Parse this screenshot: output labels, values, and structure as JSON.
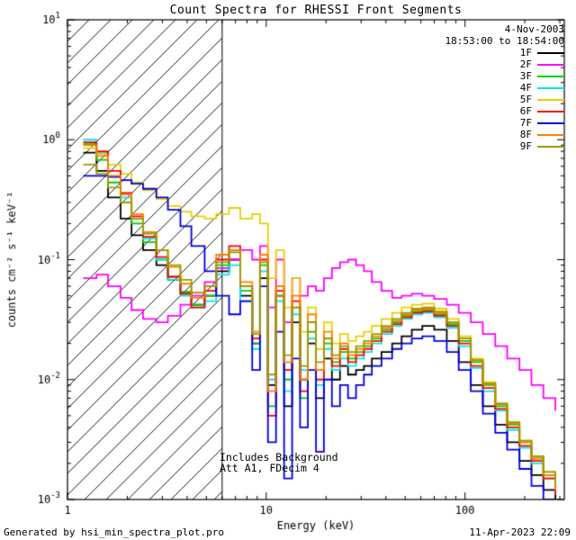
{
  "title": "Count Spectra for RHESSI Front Segments",
  "legend": {
    "date": "4-Nov-2003",
    "time_range": "18:53:00 to 18:54:00"
  },
  "annotations": {
    "line1": "Includes Background",
    "line2": "Att A1, FDecim 4"
  },
  "footer": {
    "left": "Generated by hsi_min_spectra_plot.pro",
    "right": "11-Apr-2023 22:09"
  },
  "chart_data": {
    "type": "line",
    "mode": "steps",
    "title": "Count Spectra for RHESSI Front Segments",
    "xlabel": "Energy (keV)",
    "ylabel": "counts cm⁻² s⁻¹ keV⁻¹",
    "xscale": "log",
    "yscale": "log",
    "xlim": [
      1,
      316
    ],
    "ylim": [
      0.001,
      10
    ],
    "x_ticks": [
      1,
      10,
      100
    ],
    "x_tick_labels": [
      "1",
      "10",
      "100"
    ],
    "y_tick_exponents": [
      1,
      0,
      -1,
      -2,
      -3
    ],
    "hatch_region_kev": [
      1,
      6.0
    ],
    "attenuator_line_kev": 6.0,
    "x": [
      1.2,
      1.4,
      1.6,
      1.85,
      2.1,
      2.4,
      2.8,
      3.2,
      3.7,
      4.2,
      4.9,
      5.6,
      6.5,
      7.4,
      8.5,
      9.3,
      10.2,
      11.2,
      12.3,
      13.5,
      14.8,
      16.2,
      17.8,
      19.5,
      21.4,
      23.5,
      25.8,
      28.3,
      31,
      34,
      38,
      43,
      48,
      54,
      61,
      70,
      81,
      93,
      107,
      123,
      142,
      163,
      188,
      216,
      248,
      285
    ],
    "series": [
      {
        "name": "1F",
        "color": "#000000",
        "values": [
          0.78,
          0.55,
          0.33,
          0.22,
          0.16,
          0.12,
          0.09,
          0.068,
          0.052,
          0.042,
          0.05,
          0.08,
          0.1,
          0.05,
          0.02,
          0.07,
          0.009,
          0.05,
          0.006,
          0.03,
          0.01,
          0.02,
          0.007,
          0.015,
          0.01,
          0.013,
          0.011,
          0.012,
          0.013,
          0.015,
          0.017,
          0.02,
          0.023,
          0.026,
          0.028,
          0.026,
          0.021,
          0.014,
          0.009,
          0.006,
          0.0042,
          0.003,
          0.0021,
          0.0016,
          0.0012,
          0.001
        ]
      },
      {
        "name": "2F",
        "color": "#ff00ff",
        "values": [
          0.07,
          0.075,
          0.06,
          0.048,
          0.038,
          0.032,
          0.03,
          0.034,
          0.042,
          0.05,
          0.065,
          0.085,
          0.1,
          0.12,
          0.1,
          0.13,
          0.04,
          0.1,
          0.03,
          0.07,
          0.05,
          0.06,
          0.055,
          0.07,
          0.085,
          0.095,
          0.1,
          0.09,
          0.08,
          0.065,
          0.055,
          0.048,
          0.05,
          0.052,
          0.05,
          0.047,
          0.042,
          0.036,
          0.03,
          0.024,
          0.019,
          0.015,
          0.012,
          0.009,
          0.007,
          0.0055
        ]
      },
      {
        "name": "3F",
        "color": "#00cc00",
        "values": [
          0.92,
          0.68,
          0.44,
          0.3,
          0.2,
          0.14,
          0.1,
          0.072,
          0.054,
          0.042,
          0.05,
          0.09,
          0.12,
          0.055,
          0.02,
          0.09,
          0.006,
          0.06,
          0.01,
          0.04,
          0.007,
          0.025,
          0.012,
          0.02,
          0.014,
          0.017,
          0.015,
          0.017,
          0.019,
          0.022,
          0.026,
          0.03,
          0.034,
          0.037,
          0.038,
          0.035,
          0.029,
          0.021,
          0.014,
          0.009,
          0.006,
          0.0042,
          0.003,
          0.0022,
          0.0016,
          0.0012
        ]
      },
      {
        "name": "4F",
        "color": "#00e5ee",
        "values": [
          1.0,
          0.78,
          0.5,
          0.33,
          0.22,
          0.15,
          0.1,
          0.068,
          0.05,
          0.04,
          0.045,
          0.075,
          0.09,
          0.045,
          0.018,
          0.08,
          0.01,
          0.045,
          0.008,
          0.035,
          0.012,
          0.022,
          0.009,
          0.018,
          0.012,
          0.015,
          0.013,
          0.015,
          0.017,
          0.02,
          0.024,
          0.028,
          0.032,
          0.035,
          0.036,
          0.033,
          0.027,
          0.019,
          0.0125,
          0.008,
          0.0055,
          0.0038,
          0.0027,
          0.002,
          0.0015,
          0.0011
        ]
      },
      {
        "name": "5F",
        "color": "#e8d000",
        "values": [
          0.85,
          0.76,
          0.62,
          0.52,
          0.44,
          0.38,
          0.32,
          0.28,
          0.25,
          0.23,
          0.22,
          0.24,
          0.27,
          0.22,
          0.24,
          0.2,
          0.07,
          0.12,
          0.04,
          0.07,
          0.025,
          0.04,
          0.018,
          0.03,
          0.02,
          0.024,
          0.021,
          0.023,
          0.025,
          0.028,
          0.032,
          0.036,
          0.04,
          0.042,
          0.043,
          0.039,
          0.032,
          0.023,
          0.015,
          0.0095,
          0.0063,
          0.0044,
          0.0031,
          0.0023,
          0.0017,
          0.0013
        ]
      },
      {
        "name": "6F",
        "color": "#ff0000",
        "values": [
          0.95,
          0.8,
          0.55,
          0.36,
          0.23,
          0.155,
          0.105,
          0.072,
          0.052,
          0.04,
          0.055,
          0.1,
          0.13,
          0.06,
          0.022,
          0.1,
          0.005,
          0.055,
          0.012,
          0.045,
          0.008,
          0.03,
          0.01,
          0.022,
          0.013,
          0.018,
          0.014,
          0.016,
          0.018,
          0.021,
          0.025,
          0.029,
          0.033,
          0.036,
          0.037,
          0.034,
          0.028,
          0.02,
          0.013,
          0.0085,
          0.0057,
          0.004,
          0.0028,
          0.0021,
          0.0015,
          0.0011
        ]
      },
      {
        "name": "7F",
        "color": "#0000e0",
        "values": [
          0.5,
          0.5,
          0.49,
          0.46,
          0.43,
          0.39,
          0.33,
          0.26,
          0.19,
          0.13,
          0.08,
          0.05,
          0.035,
          0.045,
          0.012,
          0.06,
          0.003,
          0.025,
          0.0015,
          0.015,
          0.004,
          0.012,
          0.0025,
          0.01,
          0.006,
          0.009,
          0.007,
          0.009,
          0.011,
          0.013,
          0.015,
          0.018,
          0.02,
          0.022,
          0.023,
          0.021,
          0.017,
          0.012,
          0.008,
          0.0052,
          0.0036,
          0.0026,
          0.0018,
          0.0013,
          0.001,
          0.0009
        ]
      },
      {
        "name": "8F",
        "color": "#ff8000",
        "values": [
          0.9,
          0.73,
          0.5,
          0.35,
          0.24,
          0.17,
          0.12,
          0.087,
          0.063,
          0.048,
          0.06,
          0.11,
          0.12,
          0.065,
          0.025,
          0.11,
          0.008,
          0.06,
          0.014,
          0.05,
          0.01,
          0.035,
          0.012,
          0.025,
          0.015,
          0.02,
          0.016,
          0.018,
          0.02,
          0.023,
          0.027,
          0.031,
          0.035,
          0.038,
          0.039,
          0.036,
          0.03,
          0.022,
          0.0145,
          0.0092,
          0.0062,
          0.0043,
          0.003,
          0.0022,
          0.0016,
          0.0012
        ]
      },
      {
        "name": "9F",
        "color": "#9b9b00",
        "values": [
          0.62,
          0.52,
          0.4,
          0.3,
          0.22,
          0.165,
          0.12,
          0.09,
          0.068,
          0.053,
          0.06,
          0.095,
          0.115,
          0.06,
          0.024,
          0.095,
          0.011,
          0.05,
          0.016,
          0.04,
          0.013,
          0.03,
          0.014,
          0.022,
          0.016,
          0.019,
          0.017,
          0.019,
          0.021,
          0.024,
          0.028,
          0.032,
          0.036,
          0.039,
          0.04,
          0.037,
          0.03,
          0.022,
          0.0145,
          0.0093,
          0.0063,
          0.0044,
          0.0031,
          0.0023,
          0.0017,
          0.0013
        ]
      }
    ]
  }
}
